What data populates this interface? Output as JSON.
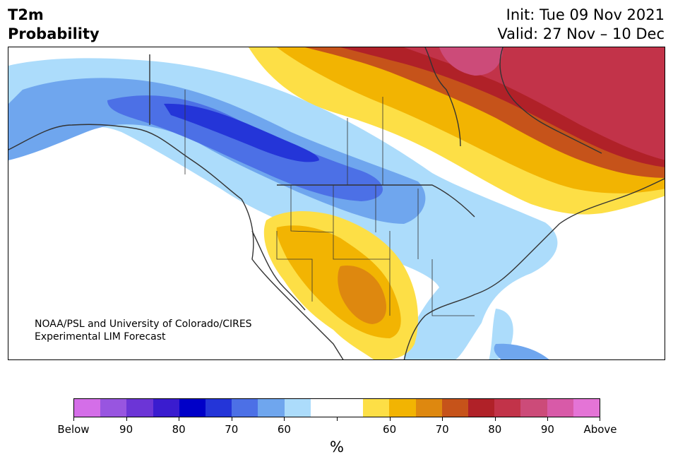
{
  "header": {
    "title_line1": "T2m",
    "title_line2": "Probability",
    "init_text": "Init: Tue 09 Nov 2021",
    "valid_text": "Valid: 27 Nov – 10 Dec"
  },
  "credit": {
    "line1": "NOAA/PSL and University of Colorado/CIRES",
    "line2": "Experimental LIM Forecast"
  },
  "colorbar": {
    "colors": [
      "#d46ee8",
      "#9855e0",
      "#6c35d6",
      "#3a1ccf",
      "#0000c8",
      "#2435d8",
      "#4c70e6",
      "#6fa6ee",
      "#acdcfb",
      "#ffffff",
      "#ffffff",
      "#fddf46",
      "#f2b402",
      "#de880f",
      "#c6531a",
      "#b02128",
      "#c23349",
      "#cc4b79",
      "#d85aa8",
      "#e474d6"
    ],
    "tick_labels": [
      "Below",
      "90",
      "80",
      "70",
      "60",
      "",
      "60",
      "70",
      "80",
      "90",
      "Above"
    ],
    "unit": "%"
  },
  "map_colors": {
    "below_60": "#acdcfb",
    "below_70": "#6fa6ee",
    "below_80": "#4c70e6",
    "below_85": "#2435d8",
    "above_60": "#fddf46",
    "above_70": "#f2b402",
    "above_75": "#de880f",
    "above_80": "#c6531a",
    "above_85": "#b02128",
    "above_90": "#c23349",
    "above_95": "#cc4b79",
    "land_line": "#333333"
  }
}
